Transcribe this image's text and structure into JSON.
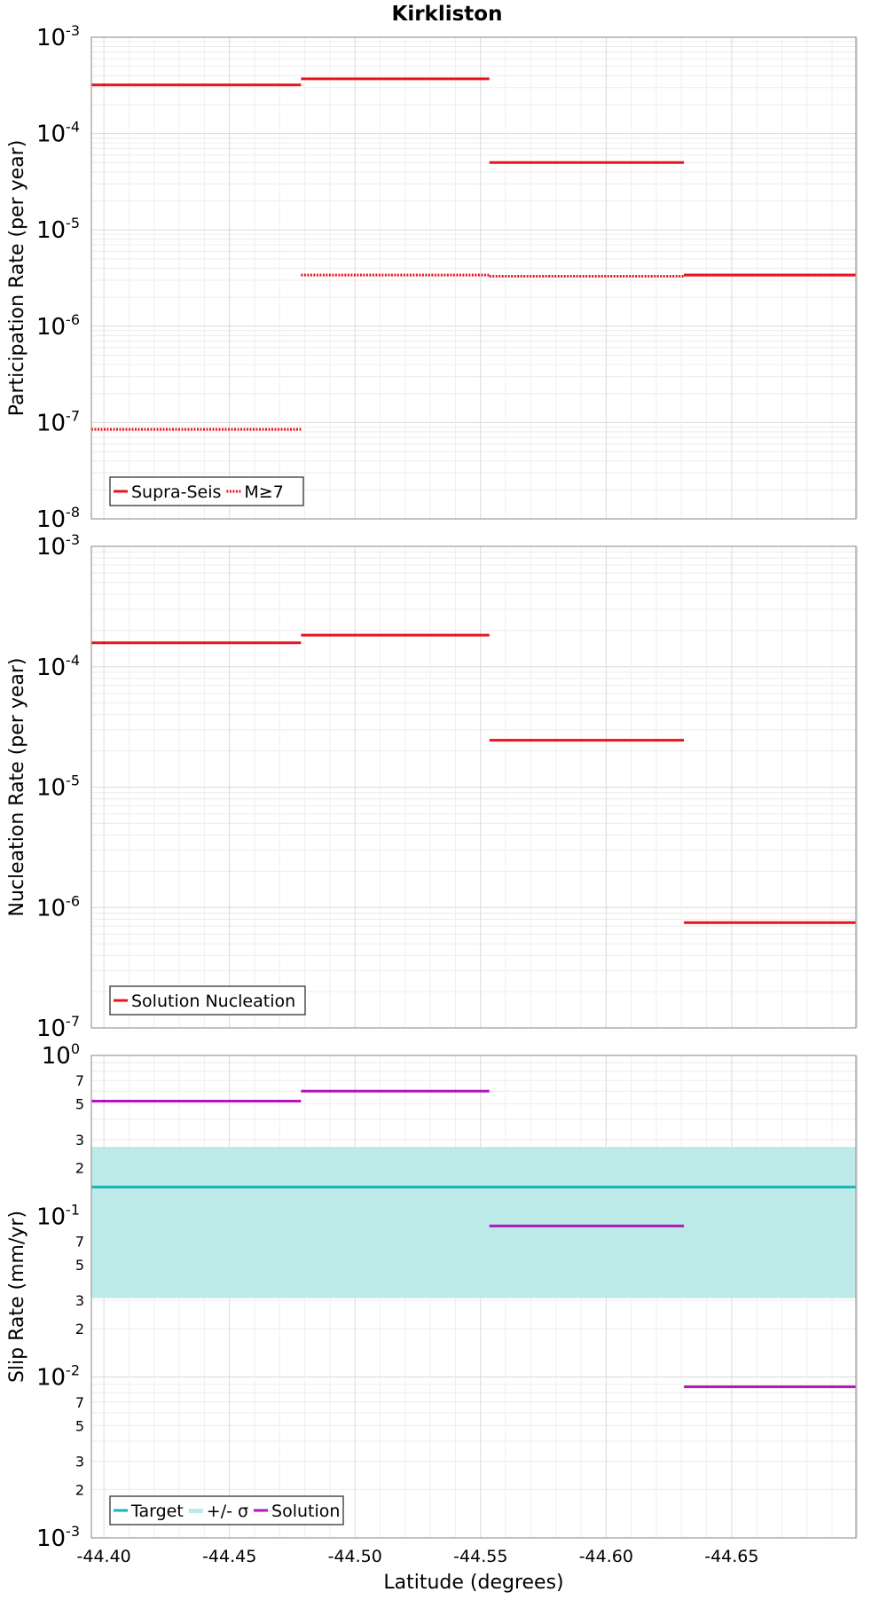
{
  "chart_data": {
    "title": "Kirkliston",
    "xlabel": "Latitude (degrees)",
    "xlim": [
      -44.395,
      -44.6995
    ],
    "x_ticks": [
      -44.4,
      -44.45,
      -44.5,
      -44.55,
      -44.6,
      -44.65
    ],
    "x_tick_labels": [
      "-44.40",
      "-44.45",
      "-44.50",
      "-44.55",
      "-44.60",
      "-44.65"
    ],
    "panels": [
      {
        "type": "line",
        "ylabel": "Participation Rate (per year)",
        "yscale": "log",
        "ylim": [
          1e-08,
          0.001
        ],
        "y_decades": [
          {
            "base": "10",
            "exp": "-8"
          },
          {
            "base": "10",
            "exp": "-7"
          },
          {
            "base": "10",
            "exp": "-6"
          },
          {
            "base": "10",
            "exp": "-5"
          },
          {
            "base": "10",
            "exp": "-4"
          },
          {
            "base": "10",
            "exp": "-3"
          }
        ],
        "legend_position": "bottom-left",
        "series": [
          {
            "name": "Supra-Seis",
            "color": "#e8141c",
            "style": "solid",
            "segments": [
              {
                "x": [
                  -44.395,
                  -44.4785
                ],
                "y": 0.00032
              },
              {
                "x": [
                  -44.4785,
                  -44.5535
                ],
                "y": 0.00037
              },
              {
                "x": [
                  -44.5535,
                  -44.631
                ],
                "y": 5e-05
              },
              {
                "x": [
                  -44.631,
                  -44.6995
                ],
                "y": 3.4e-06
              }
            ]
          },
          {
            "name": "M≥7",
            "color": "#e8141c",
            "style": "dotted",
            "segments": [
              {
                "x": [
                  -44.395,
                  -44.4785
                ],
                "y": 8.5e-08
              },
              {
                "x": [
                  -44.4785,
                  -44.5535
                ],
                "y": 3.4e-06
              },
              {
                "x": [
                  -44.5535,
                  -44.631
                ],
                "y": 3.3e-06
              },
              {
                "x": [
                  -44.631,
                  -44.6995
                ],
                "y": 3.4e-06
              }
            ]
          }
        ]
      },
      {
        "type": "line",
        "ylabel": "Nucleation Rate (per year)",
        "yscale": "log",
        "ylim": [
          1e-07,
          0.001
        ],
        "y_decades": [
          {
            "base": "10",
            "exp": "-7"
          },
          {
            "base": "10",
            "exp": "-6"
          },
          {
            "base": "10",
            "exp": "-5"
          },
          {
            "base": "10",
            "exp": "-4"
          },
          {
            "base": "10",
            "exp": "-3"
          }
        ],
        "legend_position": "bottom-left",
        "series": [
          {
            "name": "Solution Nucleation",
            "color": "#e8141c",
            "style": "solid",
            "segments": [
              {
                "x": [
                  -44.395,
                  -44.4785
                ],
                "y": 0.000158
              },
              {
                "x": [
                  -44.4785,
                  -44.5535
                ],
                "y": 0.000183
              },
              {
                "x": [
                  -44.5535,
                  -44.631
                ],
                "y": 2.45e-05
              },
              {
                "x": [
                  -44.631,
                  -44.6995
                ],
                "y": 7.5e-07
              }
            ]
          }
        ]
      },
      {
        "type": "line",
        "ylabel": "Slip Rate (mm/yr)",
        "yscale": "log",
        "ylim": [
          0.001,
          1
        ],
        "y_decades": [
          {
            "base": "10",
            "exp": "-3"
          },
          {
            "base": "10",
            "exp": "-2"
          },
          {
            "base": "10",
            "exp": "-1"
          },
          {
            "base": "10",
            "exp": "0"
          }
        ],
        "y_minor_labels": [
          {
            "v": 0.002,
            "label": "2"
          },
          {
            "v": 0.003,
            "label": "3"
          },
          {
            "v": 0.005,
            "label": "5"
          },
          {
            "v": 0.007,
            "label": "7"
          },
          {
            "v": 0.02,
            "label": "2"
          },
          {
            "v": 0.03,
            "label": "3"
          },
          {
            "v": 0.05,
            "label": "5"
          },
          {
            "v": 0.07,
            "label": "7"
          },
          {
            "v": 0.2,
            "label": "2"
          },
          {
            "v": 0.3,
            "label": "3"
          },
          {
            "v": 0.5,
            "label": "5"
          },
          {
            "v": 0.7,
            "label": "7"
          }
        ],
        "legend_position": "bottom-left",
        "band": {
          "name": "+/- σ",
          "color": "#bdeae8",
          "ylow": 0.031,
          "yhigh": 0.27
        },
        "series": [
          {
            "name": "Target",
            "color": "#19b5b0",
            "style": "solid",
            "segments": [
              {
                "x": [
                  -44.395,
                  -44.6995
                ],
                "y": 0.152
              }
            ]
          },
          {
            "name": "Solution",
            "color": "#b215b8",
            "style": "solid",
            "segments": [
              {
                "x": [
                  -44.395,
                  -44.4785
                ],
                "y": 0.52
              },
              {
                "x": [
                  -44.4785,
                  -44.5535
                ],
                "y": 0.6
              },
              {
                "x": [
                  -44.5535,
                  -44.631
                ],
                "y": 0.087
              },
              {
                "x": [
                  -44.631,
                  -44.6995
                ],
                "y": 0.0087
              }
            ]
          }
        ]
      }
    ]
  }
}
